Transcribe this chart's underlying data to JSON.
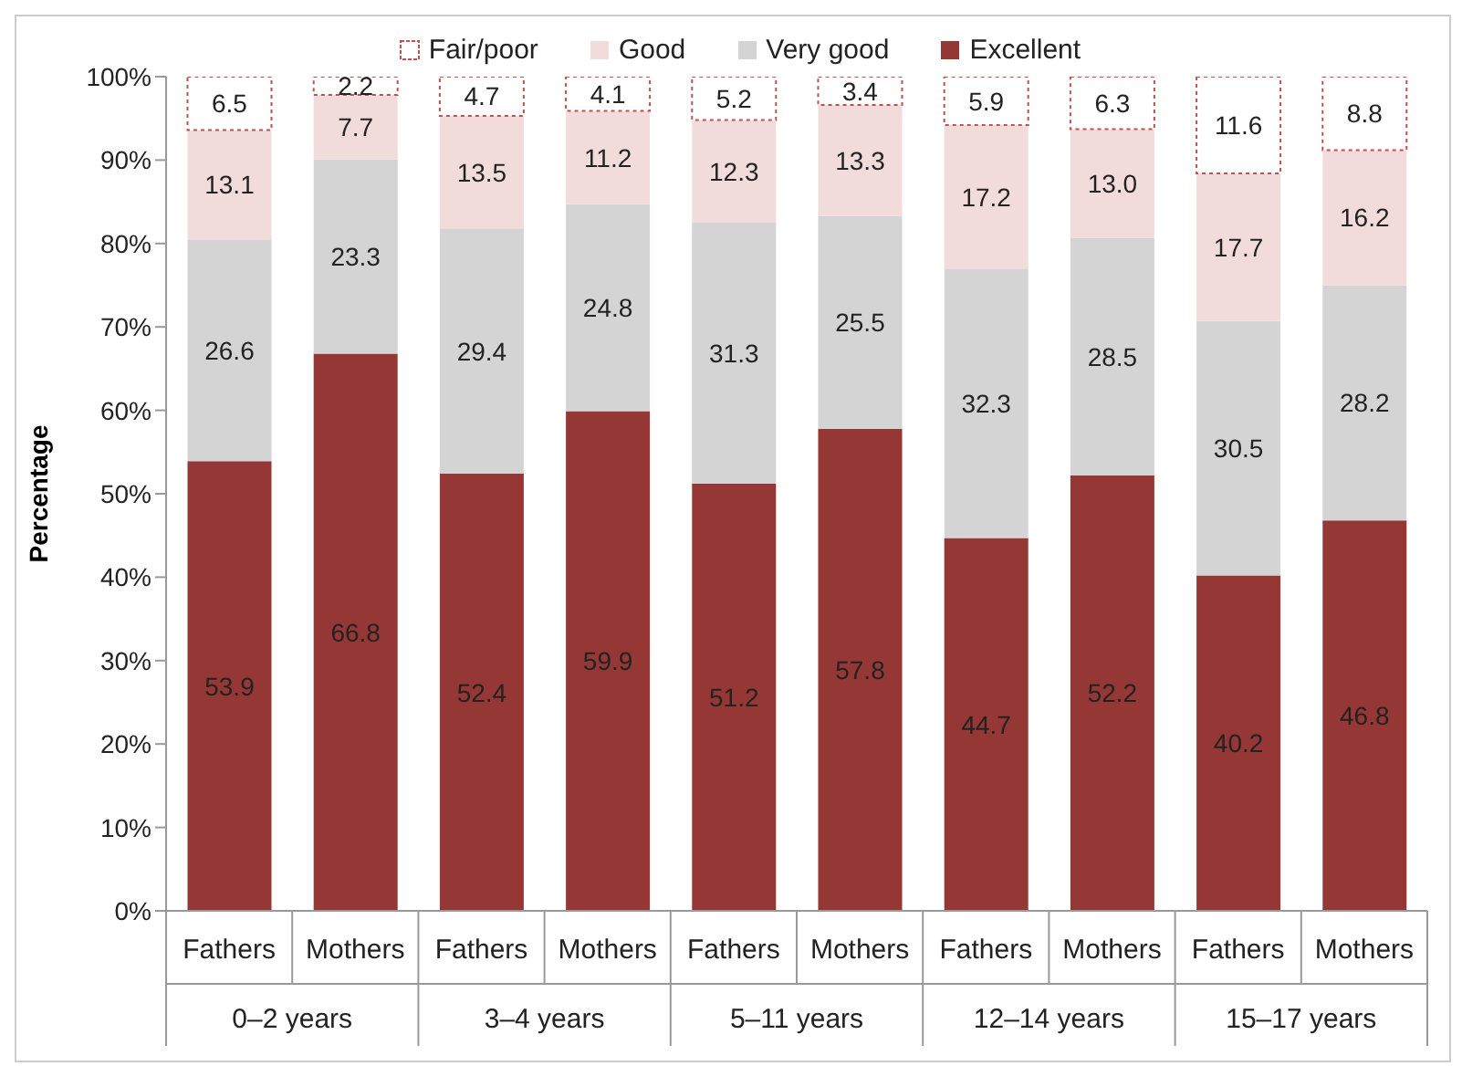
{
  "chart_data": {
    "type": "bar",
    "stacked": true,
    "ylabel": "Percentage",
    "categories": [
      "Fathers",
      "Mothers",
      "Fathers",
      "Mothers",
      "Fathers",
      "Mothers",
      "Fathers",
      "Mothers",
      "Fathers",
      "Mothers"
    ],
    "annotations": [
      "0–2 years",
      "3–4 years",
      "5–11 years",
      "12–14 years",
      "15–17 years"
    ],
    "series": [
      {
        "name": "Excellent",
        "color": "#953735",
        "values": [
          53.9,
          66.8,
          52.4,
          59.9,
          51.2,
          57.8,
          44.7,
          52.2,
          40.2,
          46.8
        ],
        "value_labels": [
          "53.9",
          "66.8",
          "52.4",
          "59.9",
          "51.2",
          "57.8",
          "44.7",
          "52.2",
          "40.2",
          "46.8"
        ]
      },
      {
        "name": "Very good",
        "color": "#d4d4d4",
        "values": [
          26.6,
          23.3,
          29.4,
          24.8,
          31.3,
          25.5,
          32.3,
          28.5,
          30.5,
          28.2
        ],
        "value_labels": [
          "26.6",
          "23.3",
          "29.4",
          "24.8",
          "31.3",
          "25.5",
          "32.3",
          "28.5",
          "30.5",
          "28.2"
        ]
      },
      {
        "name": "Good",
        "color": "#f2dcdb",
        "values": [
          13.1,
          7.7,
          13.5,
          11.2,
          12.3,
          13.3,
          17.2,
          13.0,
          17.7,
          16.2
        ],
        "value_labels": [
          "13.1",
          "7.7",
          "13.5",
          "11.2",
          "12.3",
          "13.3",
          "17.2",
          "13.0",
          "17.7",
          "16.2"
        ]
      },
      {
        "name": "Fair/poor",
        "color": "#ffffff",
        "values": [
          6.5,
          2.2,
          4.7,
          4.1,
          5.2,
          3.4,
          5.9,
          6.3,
          11.6,
          8.8
        ],
        "value_labels": [
          "6.5",
          "2.2",
          "4.7",
          "4.1",
          "5.2",
          "3.4",
          "5.9",
          "6.3",
          "11.6",
          "8.8"
        ]
      }
    ],
    "ylim": [
      0,
      100
    ],
    "yticks": [
      {
        "value": 0,
        "label": "0%"
      },
      {
        "value": 10,
        "label": "10%"
      },
      {
        "value": 20,
        "label": "20%"
      },
      {
        "value": 30,
        "label": "30%"
      },
      {
        "value": 40,
        "label": "40%"
      },
      {
        "value": 50,
        "label": "50%"
      },
      {
        "value": 60,
        "label": "60%"
      },
      {
        "value": 70,
        "label": "70%"
      },
      {
        "value": 80,
        "label": "80%"
      },
      {
        "value": 90,
        "label": "90%"
      },
      {
        "value": 100,
        "label": "100%"
      }
    ],
    "legend": "top",
    "grid": false
  }
}
